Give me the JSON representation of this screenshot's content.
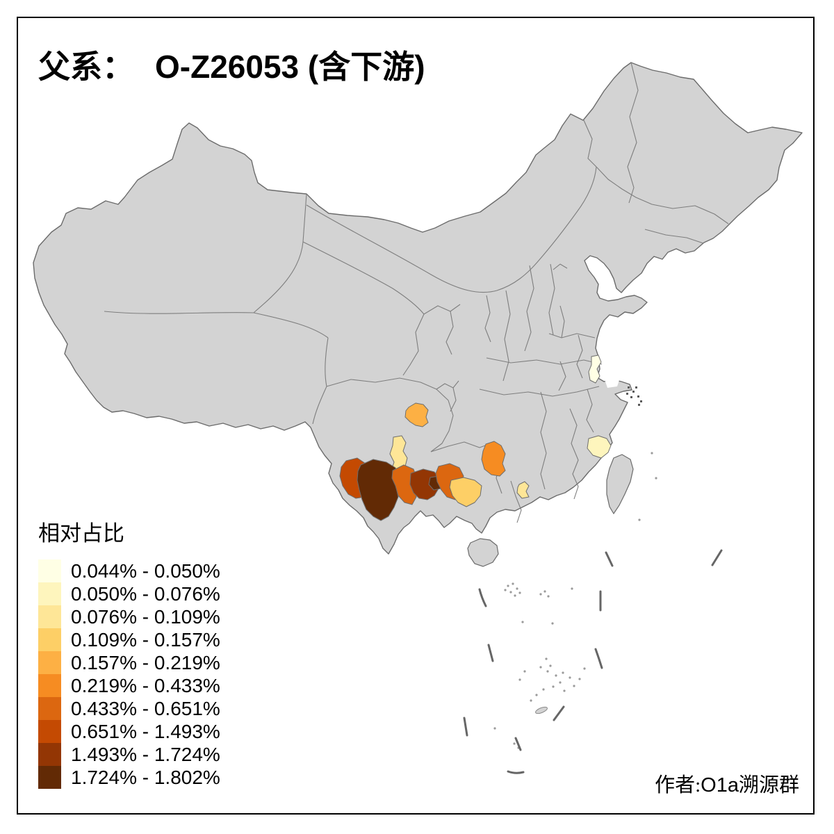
{
  "title": {
    "zh_prefix": "父系：",
    "haplogroup": "O-Z26053",
    "zh_suffix": "(含下游)"
  },
  "legend": {
    "title": "相对占比",
    "items": [
      {
        "label": "0.044% - 0.050%",
        "color": "#FFFFE5"
      },
      {
        "label": "0.050% - 0.076%",
        "color": "#FEF5BD"
      },
      {
        "label": "0.076% - 0.109%",
        "color": "#FEE697"
      },
      {
        "label": "0.109% - 0.157%",
        "color": "#FDCF66"
      },
      {
        "label": "0.157% - 0.219%",
        "color": "#FDB044"
      },
      {
        "label": "0.219% - 0.433%",
        "color": "#F68C22"
      },
      {
        "label": "0.433% - 0.651%",
        "color": "#DC6710"
      },
      {
        "label": "0.651% - 1.493%",
        "color": "#C44A02"
      },
      {
        "label": "1.493% - 1.724%",
        "color": "#933604"
      },
      {
        "label": "1.724% - 1.802%",
        "color": "#622A05"
      }
    ]
  },
  "author": {
    "zh1": "作者:",
    "latin": "O1a",
    "zh2": "溯源群"
  },
  "map": {
    "land_fill": "#D3D3D3",
    "boundary_color": "#7E7E7E",
    "outline_color": "#6B6B6B",
    "sea_color": "#FFFFFF",
    "regions": [
      {
        "id": "jiangsu-central",
        "range": "0.044% - 0.050%",
        "color": "#FFFFE5"
      },
      {
        "id": "fujian-coastal",
        "range": "0.050% - 0.076%",
        "color": "#FEF5BD"
      },
      {
        "id": "sichuan-southwest",
        "range": "0.076% - 0.109%",
        "color": "#FEE697"
      },
      {
        "id": "guangdong-west-small",
        "range": "0.076% - 0.109%",
        "color": "#FEE697"
      },
      {
        "id": "guangxi-west",
        "range": "0.109% - 0.157%",
        "color": "#FDCF66"
      },
      {
        "id": "sichuan-center",
        "range": "0.157% - 0.219%",
        "color": "#FDB044"
      },
      {
        "id": "hunan-west",
        "range": "0.219% - 0.433%",
        "color": "#F68C22"
      },
      {
        "id": "yunnan-central",
        "range": "0.433% - 0.651%",
        "color": "#DC6710"
      },
      {
        "id": "yunnan-southeast",
        "range": "0.433% - 0.651%",
        "color": "#DC6710"
      },
      {
        "id": "yunnan-west",
        "range": "0.651% - 1.493%",
        "color": "#C44A02"
      },
      {
        "id": "yunnan-south",
        "range": "1.493% - 1.724%",
        "color": "#933604"
      },
      {
        "id": "yunnan-southwest-dark",
        "range": "1.724% - 1.802%",
        "color": "#622A05"
      },
      {
        "id": "yunnan-south-dark-lobe",
        "range": "1.724% - 1.802%",
        "color": "#622A05"
      }
    ]
  },
  "chart_data": {
    "type": "choropleth_map",
    "title": "父系： O-Z26053 (含下游)",
    "legend_title": "相对占比",
    "legend_position": "bottom-left",
    "classes": [
      {
        "bin": "0.044% - 0.050%",
        "color": "#FFFFE5"
      },
      {
        "bin": "0.050% - 0.076%",
        "color": "#FEF5BD"
      },
      {
        "bin": "0.076% - 0.109%",
        "color": "#FEE697"
      },
      {
        "bin": "0.109% - 0.157%",
        "color": "#FDCF66"
      },
      {
        "bin": "0.157% - 0.219%",
        "color": "#FDB044"
      },
      {
        "bin": "0.219% - 0.433%",
        "color": "#F68C22"
      },
      {
        "bin": "0.433% - 0.651%",
        "color": "#DC6710"
      },
      {
        "bin": "0.651% - 1.493%",
        "color": "#C44A02"
      },
      {
        "bin": "1.493% - 1.724%",
        "color": "#933604"
      },
      {
        "bin": "1.724% - 1.802%",
        "color": "#622A05"
      }
    ],
    "shaded_regions": [
      {
        "location": "central Sichuan (Chengdu area)",
        "value_range": "0.157% - 0.219%"
      },
      {
        "location": "southwestern Sichuan",
        "value_range": "0.076% - 0.109%"
      },
      {
        "location": "western Yunnan",
        "value_range": "0.651% - 1.493%"
      },
      {
        "location": "southwestern Yunnan",
        "value_range": "1.724% - 1.802%"
      },
      {
        "location": "central Yunnan",
        "value_range": "0.433% - 0.651%"
      },
      {
        "location": "southern Yunnan",
        "value_range": "1.493% - 1.724%"
      },
      {
        "location": "small lobe southern Yunnan",
        "value_range": "1.724% - 1.802%"
      },
      {
        "location": "southeastern Yunnan",
        "value_range": "0.433% - 0.651%"
      },
      {
        "location": "western Guangxi",
        "value_range": "0.109% - 0.157%"
      },
      {
        "location": "western Hunan / eastern Guizhou",
        "value_range": "0.219% - 0.433%"
      },
      {
        "location": "western Guangdong (small)",
        "value_range": "0.076% - 0.109%"
      },
      {
        "location": "central Jiangsu",
        "value_range": "0.044% - 0.050%"
      },
      {
        "location": "coastal Fujian",
        "value_range": "0.050% - 0.076%"
      }
    ],
    "unshaded_fill": "no data (gray)"
  }
}
